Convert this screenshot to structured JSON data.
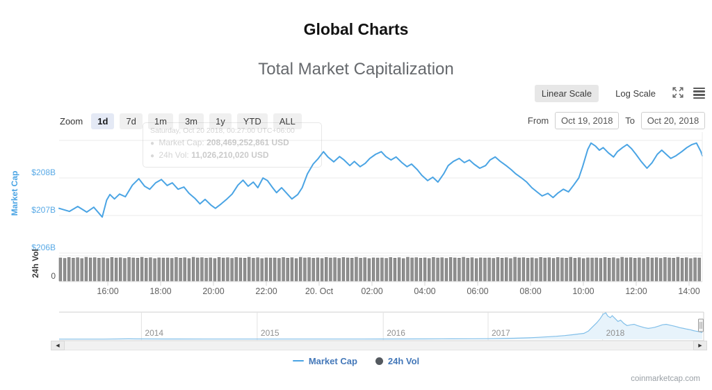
{
  "page": {
    "title": "Global Charts",
    "subtitle": "Total Market Capitalization",
    "watermark": "coinmarketcap.com"
  },
  "scale_controls": {
    "buttons": [
      {
        "label": "Linear Scale",
        "active": true
      },
      {
        "label": "Log Scale",
        "active": false
      }
    ],
    "icons": [
      "expand-arrows",
      "hamburger-menu"
    ]
  },
  "range_controls": {
    "zoom_label": "Zoom",
    "buttons": [
      {
        "label": "1d",
        "active": true
      },
      {
        "label": "7d",
        "active": false
      },
      {
        "label": "1m",
        "active": false
      },
      {
        "label": "3m",
        "active": false
      },
      {
        "label": "1y",
        "active": false
      },
      {
        "label": "YTD",
        "active": false
      },
      {
        "label": "ALL",
        "active": false
      }
    ],
    "from_label": "From",
    "from_value": "Oct 19, 2018",
    "to_label": "To",
    "to_value": "Oct 20, 2018"
  },
  "tooltip": {
    "title": "Saturday, Oct 20 2018, 00:27:00 UTC+06:00",
    "rows": [
      {
        "label": "Market Cap:",
        "value": "208,469,252,861 USD"
      },
      {
        "label": "24h Vol:",
        "value": "11,026,210,020 USD"
      }
    ]
  },
  "legend": [
    {
      "label": "Market Cap",
      "marker": "line"
    },
    {
      "label": "24h Vol",
      "marker": "circle"
    }
  ],
  "colors": {
    "line_blue": "#4aa4e4",
    "axis_blue": "#58a9e6",
    "volume_gray": "#909090",
    "volume_stroke": "#6f6f6f",
    "grid": "#ebebeb",
    "axis_line": "#d6d6d6",
    "nav_fill": "#e7f3fb",
    "nav_stroke": "#81bfe9",
    "legend_text": "#4478b9"
  },
  "chart_data": {
    "type": "line",
    "title": "Total Market Capitalization",
    "x_range": [
      "Oct 19, 2018 ~14:10",
      "Oct 20, 2018 ~14:30"
    ],
    "y_axis_market_cap": {
      "title": "Market Cap",
      "unit": "billion USD",
      "tick_values": [
        209,
        208,
        207,
        206
      ],
      "tick_labels": [
        "",
        "$208B",
        "$207B",
        "$206B"
      ]
    },
    "y_axis_volume": {
      "title": "24h Vol",
      "unit": "billion USD",
      "max": 12,
      "tick_labels": [
        "0"
      ]
    },
    "x_axis": {
      "ticks": [
        {
          "t": 0.0757,
          "label": "16:00"
        },
        {
          "t": 0.1578,
          "label": "18:00"
        },
        {
          "t": 0.24,
          "label": "20:00"
        },
        {
          "t": 0.3222,
          "label": "22:00"
        },
        {
          "t": 0.4043,
          "label": "20. Oct"
        },
        {
          "t": 0.4865,
          "label": "02:00"
        },
        {
          "t": 0.5686,
          "label": "04:00"
        },
        {
          "t": 0.6508,
          "label": "06:00"
        },
        {
          "t": 0.733,
          "label": "08:00"
        },
        {
          "t": 0.8151,
          "label": "10:00"
        },
        {
          "t": 0.8973,
          "label": "12:00"
        },
        {
          "t": 0.9795,
          "label": "14:00"
        }
      ]
    },
    "market_cap_series": {
      "name": "Market Cap",
      "unit": "billion USD",
      "points": [
        [
          0,
          207.19
        ],
        [
          0.016,
          207.11
        ],
        [
          0.029,
          207.24
        ],
        [
          0.043,
          207.09
        ],
        [
          0.054,
          207.22
        ],
        [
          0.067,
          206.96
        ],
        [
          0.074,
          207.41
        ],
        [
          0.079,
          207.56
        ],
        [
          0.086,
          207.44
        ],
        [
          0.094,
          207.57
        ],
        [
          0.103,
          207.5
        ],
        [
          0.114,
          207.81
        ],
        [
          0.124,
          207.98
        ],
        [
          0.133,
          207.78
        ],
        [
          0.141,
          207.7
        ],
        [
          0.15,
          207.87
        ],
        [
          0.159,
          207.96
        ],
        [
          0.168,
          207.8
        ],
        [
          0.176,
          207.87
        ],
        [
          0.185,
          207.7
        ],
        [
          0.194,
          207.76
        ],
        [
          0.202,
          207.59
        ],
        [
          0.211,
          207.46
        ],
        [
          0.219,
          207.31
        ],
        [
          0.227,
          207.43
        ],
        [
          0.236,
          207.28
        ],
        [
          0.243,
          207.19
        ],
        [
          0.252,
          207.31
        ],
        [
          0.261,
          207.44
        ],
        [
          0.269,
          207.57
        ],
        [
          0.278,
          207.81
        ],
        [
          0.286,
          207.94
        ],
        [
          0.294,
          207.78
        ],
        [
          0.302,
          207.89
        ],
        [
          0.309,
          207.74
        ],
        [
          0.317,
          208.0
        ],
        [
          0.324,
          207.93
        ],
        [
          0.332,
          207.74
        ],
        [
          0.338,
          207.61
        ],
        [
          0.346,
          207.74
        ],
        [
          0.354,
          207.59
        ],
        [
          0.362,
          207.44
        ],
        [
          0.371,
          207.56
        ],
        [
          0.378,
          207.74
        ],
        [
          0.386,
          208.11
        ],
        [
          0.395,
          208.37
        ],
        [
          0.403,
          208.52
        ],
        [
          0.411,
          208.7
        ],
        [
          0.418,
          208.56
        ],
        [
          0.427,
          208.43
        ],
        [
          0.436,
          208.57
        ],
        [
          0.443,
          208.48
        ],
        [
          0.452,
          208.33
        ],
        [
          0.459,
          208.44
        ],
        [
          0.468,
          208.3
        ],
        [
          0.476,
          208.39
        ],
        [
          0.483,
          208.52
        ],
        [
          0.492,
          208.63
        ],
        [
          0.501,
          208.7
        ],
        [
          0.508,
          208.57
        ],
        [
          0.516,
          208.48
        ],
        [
          0.524,
          208.56
        ],
        [
          0.533,
          208.41
        ],
        [
          0.541,
          208.3
        ],
        [
          0.548,
          208.37
        ],
        [
          0.557,
          208.22
        ],
        [
          0.564,
          208.07
        ],
        [
          0.573,
          207.93
        ],
        [
          0.581,
          208.02
        ],
        [
          0.589,
          207.89
        ],
        [
          0.598,
          208.11
        ],
        [
          0.605,
          208.33
        ],
        [
          0.613,
          208.44
        ],
        [
          0.622,
          208.52
        ],
        [
          0.63,
          208.41
        ],
        [
          0.638,
          208.48
        ],
        [
          0.645,
          208.37
        ],
        [
          0.654,
          208.26
        ],
        [
          0.663,
          208.33
        ],
        [
          0.67,
          208.48
        ],
        [
          0.678,
          208.56
        ],
        [
          0.686,
          208.44
        ],
        [
          0.695,
          208.33
        ],
        [
          0.703,
          208.22
        ],
        [
          0.71,
          208.11
        ],
        [
          0.719,
          208.0
        ],
        [
          0.727,
          207.89
        ],
        [
          0.735,
          207.74
        ],
        [
          0.743,
          207.63
        ],
        [
          0.751,
          207.52
        ],
        [
          0.76,
          207.59
        ],
        [
          0.768,
          207.48
        ],
        [
          0.775,
          207.59
        ],
        [
          0.784,
          207.7
        ],
        [
          0.792,
          207.63
        ],
        [
          0.8,
          207.81
        ],
        [
          0.808,
          208.0
        ],
        [
          0.814,
          208.3
        ],
        [
          0.822,
          208.76
        ],
        [
          0.827,
          208.93
        ],
        [
          0.834,
          208.85
        ],
        [
          0.84,
          208.74
        ],
        [
          0.846,
          208.81
        ],
        [
          0.854,
          208.67
        ],
        [
          0.862,
          208.56
        ],
        [
          0.868,
          208.7
        ],
        [
          0.876,
          208.81
        ],
        [
          0.883,
          208.89
        ],
        [
          0.89,
          208.78
        ],
        [
          0.897,
          208.63
        ],
        [
          0.905,
          208.44
        ],
        [
          0.914,
          208.26
        ],
        [
          0.922,
          208.41
        ],
        [
          0.93,
          208.63
        ],
        [
          0.937,
          208.74
        ],
        [
          0.944,
          208.63
        ],
        [
          0.951,
          208.52
        ],
        [
          0.959,
          208.59
        ],
        [
          0.968,
          208.7
        ],
        [
          0.976,
          208.81
        ],
        [
          0.984,
          208.89
        ],
        [
          0.991,
          208.93
        ],
        [
          0.998,
          208.7
        ],
        [
          1,
          208.59
        ]
      ]
    },
    "volume_series": {
      "name": "24h Vol",
      "unit": "billion USD",
      "approx_value_billion": 11.0,
      "values": [
        11.0,
        10.8,
        11.2,
        10.9,
        11.1,
        10.7,
        11.3,
        11.0,
        11.15,
        10.85,
        11.05,
        10.75,
        11.25,
        10.95,
        11.1,
        10.8,
        11.2,
        11.0,
        10.9,
        11.3,
        10.85,
        11.1,
        10.7,
        11.05,
        10.95,
        11.0,
        10.8,
        11.2,
        10.9,
        11.1,
        10.7,
        11.3,
        11.0,
        11.15,
        10.85,
        11.05,
        10.75,
        11.25,
        10.95,
        11.1,
        10.8,
        11.2,
        11.0,
        10.9,
        11.3,
        10.85,
        11.1,
        10.7,
        11.05,
        10.95,
        11.0,
        10.8,
        11.2,
        10.9,
        11.1,
        10.7,
        11.3,
        11.0,
        11.15,
        10.85,
        11.05,
        10.75,
        11.25,
        10.95,
        11.1,
        10.8,
        11.2,
        11.0,
        10.9,
        11.3,
        10.85,
        11.1,
        10.7,
        11.05,
        10.95,
        11.0,
        10.8,
        11.2,
        10.9,
        11.1,
        10.7,
        11.3,
        11.0,
        11.15,
        10.85,
        11.05,
        10.75,
        11.25,
        10.95,
        11.1,
        10.8,
        11.2,
        11.0,
        10.9,
        11.3,
        10.85,
        11.1,
        10.7,
        11.05,
        10.95,
        11.0,
        10.8,
        11.2,
        10.9,
        11.1,
        10.7,
        11.3,
        11.0,
        11.15,
        10.85,
        11.05,
        10.75,
        11.25,
        10.95,
        11.1,
        10.8,
        11.2,
        11.0,
        10.9,
        11.3,
        10.85,
        11.1,
        10.7,
        11.05,
        10.95,
        11.0,
        10.8,
        11.2,
        10.9,
        11.1,
        10.7,
        11.3,
        11.0,
        11.15,
        10.85,
        11.05,
        10.75,
        11.25,
        10.95,
        11.1,
        10.8,
        11.2,
        11.0,
        10.9,
        11.3,
        10.85,
        11.1,
        10.7,
        11.05,
        10.95
      ]
    },
    "navigator": {
      "description": "full-history market cap 2013-2018, billions USD",
      "range_billion": [
        0,
        830
      ],
      "year_ticks": [
        {
          "t": 0.128,
          "label": "2014"
        },
        {
          "t": 0.308,
          "label": "2015"
        },
        {
          "t": 0.504,
          "label": "2016"
        },
        {
          "t": 0.667,
          "label": "2017"
        },
        {
          "t": 0.845,
          "label": "2018"
        }
      ],
      "points": [
        [
          0,
          4
        ],
        [
          0.07,
          5
        ],
        [
          0.108,
          14
        ],
        [
          0.119,
          11
        ],
        [
          0.128,
          12
        ],
        [
          0.168,
          9
        ],
        [
          0.232,
          7
        ],
        [
          0.308,
          6
        ],
        [
          0.395,
          6
        ],
        [
          0.47,
          7
        ],
        [
          0.504,
          8
        ],
        [
          0.568,
          10
        ],
        [
          0.611,
          13
        ],
        [
          0.643,
          15
        ],
        [
          0.667,
          18
        ],
        [
          0.686,
          24
        ],
        [
          0.708,
          32
        ],
        [
          0.73,
          45
        ],
        [
          0.746,
          62
        ],
        [
          0.762,
          80
        ],
        [
          0.773,
          95
        ],
        [
          0.786,
          115
        ],
        [
          0.797,
          140
        ],
        [
          0.808,
          165
        ],
        [
          0.816,
          185
        ],
        [
          0.823,
          260
        ],
        [
          0.829,
          380
        ],
        [
          0.836,
          520
        ],
        [
          0.841,
          640
        ],
        [
          0.846,
          790
        ],
        [
          0.85,
          830
        ],
        [
          0.853,
          730
        ],
        [
          0.857,
          680
        ],
        [
          0.86,
          740
        ],
        [
          0.865,
          640
        ],
        [
          0.869,
          560
        ],
        [
          0.873,
          600
        ],
        [
          0.878,
          500
        ],
        [
          0.883,
          430
        ],
        [
          0.889,
          455
        ],
        [
          0.894,
          470
        ],
        [
          0.899,
          430
        ],
        [
          0.905,
          395
        ],
        [
          0.91,
          365
        ],
        [
          0.916,
          340
        ],
        [
          0.921,
          355
        ],
        [
          0.926,
          375
        ],
        [
          0.933,
          420
        ],
        [
          0.938,
          455
        ],
        [
          0.944,
          470
        ],
        [
          0.949,
          445
        ],
        [
          0.955,
          420
        ],
        [
          0.96,
          395
        ],
        [
          0.965,
          365
        ],
        [
          0.971,
          340
        ],
        [
          0.976,
          318
        ],
        [
          0.982,
          298
        ],
        [
          0.986,
          272
        ],
        [
          0.99,
          255
        ],
        [
          0.995,
          240
        ],
        [
          0.998,
          222
        ],
        [
          1,
          212
        ]
      ]
    }
  }
}
